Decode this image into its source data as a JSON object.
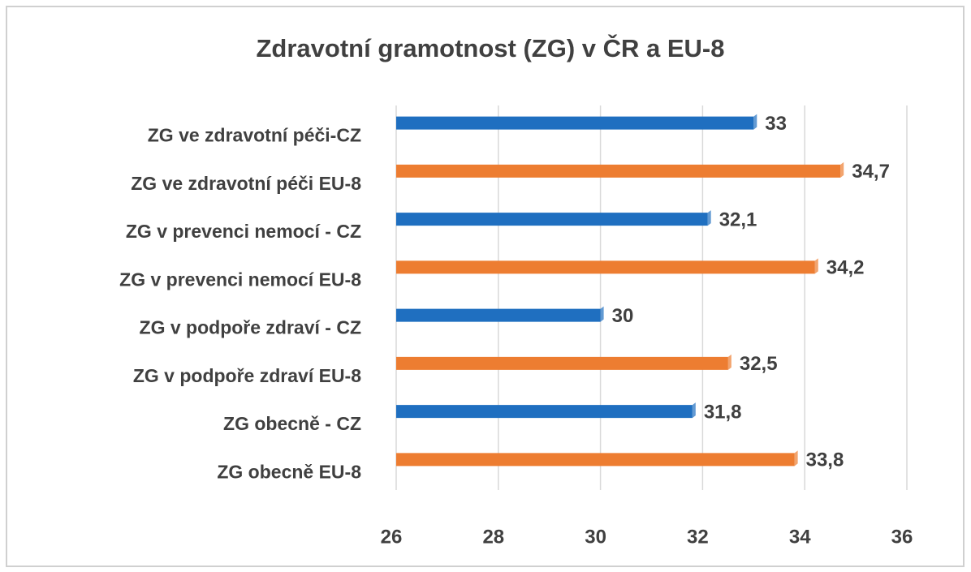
{
  "chart_data": {
    "type": "hbar",
    "title": "Zdravotní gramotnost (ZG) v ČR a EU-8",
    "categories": [
      "ZG ve zdravotní péči-CZ",
      "ZG ve zdravotní péči EU-8",
      "ZG v prevenci nemocí - CZ",
      "ZG v prevenci nemocí EU-8",
      "ZG v podpoře zdraví - CZ",
      "ZG v podpoře zdraví EU-8",
      "ZG obecně - CZ",
      "ZG obecně EU-8"
    ],
    "values": [
      33,
      34.7,
      32.1,
      34.2,
      30,
      32.5,
      31.8,
      33.8
    ],
    "value_labels": [
      "33",
      "34,7",
      "32,1",
      "34,2",
      "30",
      "32,5",
      "31,8",
      "33,8"
    ],
    "colors": [
      "#1f6fc0",
      "#ed7d31",
      "#1f6fc0",
      "#ed7d31",
      "#1f6fc0",
      "#ed7d31",
      "#1f6fc0",
      "#ed7d31"
    ],
    "xlim": [
      26,
      36
    ],
    "xticks": [
      26,
      28,
      30,
      32,
      34,
      36
    ],
    "grid": true
  }
}
